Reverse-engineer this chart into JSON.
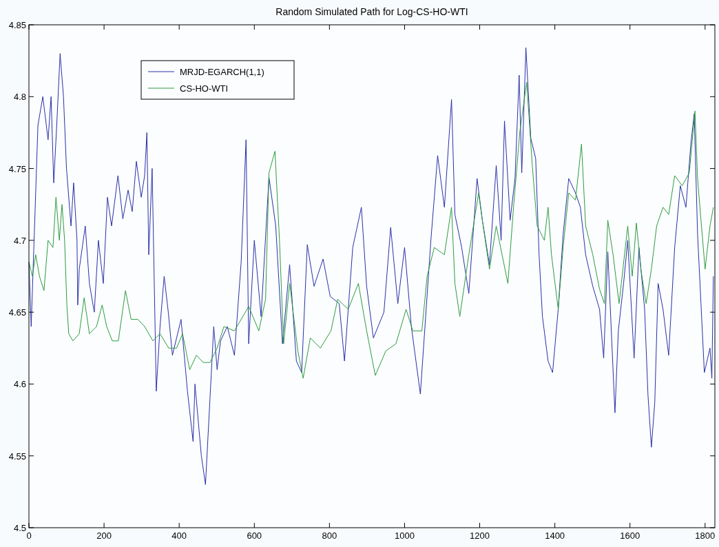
{
  "chart_data": {
    "type": "line",
    "title": "Random Simulated Path for Log-CS-HO-WTI",
    "legend": "top left",
    "grid": false,
    "marker": "none",
    "line_style": "solid",
    "xlim": [
      0,
      1826
    ],
    "xticks": [
      0,
      200,
      400,
      600,
      800,
      1000,
      1200,
      1400,
      1600,
      1800
    ],
    "ylim": [
      4.5,
      4.85
    ],
    "yticks": [
      4.5,
      4.55,
      4.6,
      4.65,
      4.7,
      4.75,
      4.8,
      4.85
    ],
    "series": [
      {
        "name": "MRJD-EGARCH(1,1)",
        "color": "#2a30a8",
        "x": [
          0,
          6,
          24,
          37,
          51,
          59,
          66,
          74,
          83,
          92,
          100,
          112,
          119,
          128,
          130,
          134,
          150,
          161,
          174,
          185,
          198,
          209,
          220,
          237,
          250,
          264,
          275,
          286,
          299,
          308,
          314,
          319,
          328,
          339,
          349,
          360,
          371,
          382,
          405,
          422,
          437,
          442,
          459,
          470,
          482,
          492,
          501,
          510,
          528,
          547,
          565,
          578,
          585,
          600,
          618,
          639,
          657,
          675,
          694,
          712,
          726,
          741,
          759,
          783,
          802,
          826,
          840,
          862,
          885,
          899,
          917,
          945,
          963,
          982,
          1000,
          1018,
          1042,
          1070,
          1088,
          1106,
          1125,
          1134,
          1152,
          1171,
          1193,
          1207,
          1226,
          1244,
          1257,
          1266,
          1281,
          1294,
          1305,
          1312,
          1323,
          1336,
          1349,
          1358,
          1367,
          1382,
          1394,
          1409,
          1422,
          1437,
          1455,
          1468,
          1482,
          1501,
          1519,
          1530,
          1541,
          1560,
          1569,
          1583,
          1594,
          1611,
          1624,
          1639,
          1648,
          1657,
          1666,
          1675,
          1688,
          1703,
          1719,
          1734,
          1749,
          1762,
          1771,
          1780,
          1789,
          1798,
          1813,
          1818,
          1822
        ],
        "values": [
          4.685,
          4.64,
          4.78,
          4.8,
          4.77,
          4.8,
          4.74,
          4.78,
          4.83,
          4.8,
          4.75,
          4.71,
          4.74,
          4.7,
          4.655,
          4.68,
          4.71,
          4.67,
          4.65,
          4.7,
          4.67,
          4.73,
          4.71,
          4.745,
          4.715,
          4.735,
          4.72,
          4.755,
          4.73,
          4.745,
          4.775,
          4.69,
          4.75,
          4.595,
          4.64,
          4.675,
          4.65,
          4.62,
          4.645,
          4.595,
          4.56,
          4.6,
          4.55,
          4.53,
          4.59,
          4.64,
          4.61,
          4.63,
          4.64,
          4.62,
          4.685,
          4.77,
          4.628,
          4.7,
          4.647,
          4.744,
          4.71,
          4.628,
          4.683,
          4.616,
          4.608,
          4.697,
          4.668,
          4.687,
          4.661,
          4.656,
          4.616,
          4.695,
          4.723,
          4.668,
          4.632,
          4.65,
          4.709,
          4.656,
          4.695,
          4.64,
          4.593,
          4.7,
          4.759,
          4.723,
          4.798,
          4.718,
          4.695,
          4.663,
          4.743,
          4.714,
          4.683,
          4.752,
          4.7,
          4.783,
          4.714,
          4.743,
          4.815,
          4.747,
          4.834,
          4.771,
          4.757,
          4.69,
          4.647,
          4.616,
          4.608,
          4.652,
          4.704,
          4.743,
          4.733,
          4.723,
          4.69,
          4.668,
          4.652,
          4.618,
          4.692,
          4.58,
          4.637,
          4.67,
          4.7,
          4.618,
          4.695,
          4.652,
          4.592,
          4.556,
          4.587,
          4.67,
          4.652,
          4.62,
          4.695,
          4.738,
          4.723,
          4.767,
          4.788,
          4.704,
          4.656,
          4.608,
          4.625,
          4.604,
          4.675
        ]
      },
      {
        "name": "CS-HO-WTI",
        "color": "#2e9c40",
        "x": [
          0,
          9,
          18,
          28,
          40,
          51,
          64,
          72,
          81,
          88,
          95,
          101,
          106,
          117,
          134,
          147,
          161,
          180,
          195,
          207,
          222,
          238,
          257,
          272,
          290,
          308,
          330,
          349,
          372,
          393,
          409,
          428,
          446,
          464,
          482,
          501,
          519,
          547,
          585,
          612,
          630,
          639,
          655,
          667,
          678,
          694,
          716,
          730,
          749,
          776,
          804,
          822,
          850,
          877,
          899,
          922,
          950,
          977,
          1004,
          1022,
          1046,
          1060,
          1079,
          1106,
          1125,
          1134,
          1147,
          1171,
          1197,
          1207,
          1226,
          1244,
          1275,
          1290,
          1307,
          1325,
          1340,
          1353,
          1372,
          1382,
          1391,
          1409,
          1422,
          1437,
          1455,
          1471,
          1482,
          1501,
          1519,
          1532,
          1541,
          1555,
          1571,
          1594,
          1606,
          1617,
          1629,
          1643,
          1657,
          1671,
          1688,
          1703,
          1719,
          1739,
          1758,
          1773,
          1780,
          1789,
          1800,
          1813,
          1822
        ],
        "values": [
          4.685,
          4.675,
          4.69,
          4.675,
          4.665,
          4.7,
          4.695,
          4.73,
          4.7,
          4.725,
          4.7,
          4.655,
          4.635,
          4.63,
          4.635,
          4.66,
          4.635,
          4.64,
          4.655,
          4.64,
          4.63,
          4.63,
          4.665,
          4.645,
          4.645,
          4.64,
          4.63,
          4.635,
          4.625,
          4.625,
          4.635,
          4.61,
          4.62,
          4.615,
          4.615,
          4.625,
          4.64,
          4.637,
          4.654,
          4.637,
          4.659,
          4.747,
          4.762,
          4.7,
          4.628,
          4.67,
          4.623,
          4.604,
          4.632,
          4.625,
          4.637,
          4.659,
          4.652,
          4.67,
          4.637,
          4.606,
          4.623,
          4.628,
          4.652,
          4.637,
          4.637,
          4.675,
          4.695,
          4.69,
          4.723,
          4.67,
          4.647,
          4.69,
          4.733,
          4.714,
          4.68,
          4.71,
          4.67,
          4.723,
          4.776,
          4.81,
          4.752,
          4.71,
          4.7,
          4.723,
          4.69,
          4.652,
          4.695,
          4.733,
          4.728,
          4.767,
          4.71,
          4.69,
          4.666,
          4.656,
          4.714,
          4.69,
          4.656,
          4.71,
          4.675,
          4.712,
          4.68,
          4.656,
          4.68,
          4.71,
          4.723,
          4.718,
          4.745,
          4.738,
          4.747,
          4.79,
          4.743,
          4.714,
          4.68,
          4.71,
          4.723
        ]
      }
    ]
  }
}
